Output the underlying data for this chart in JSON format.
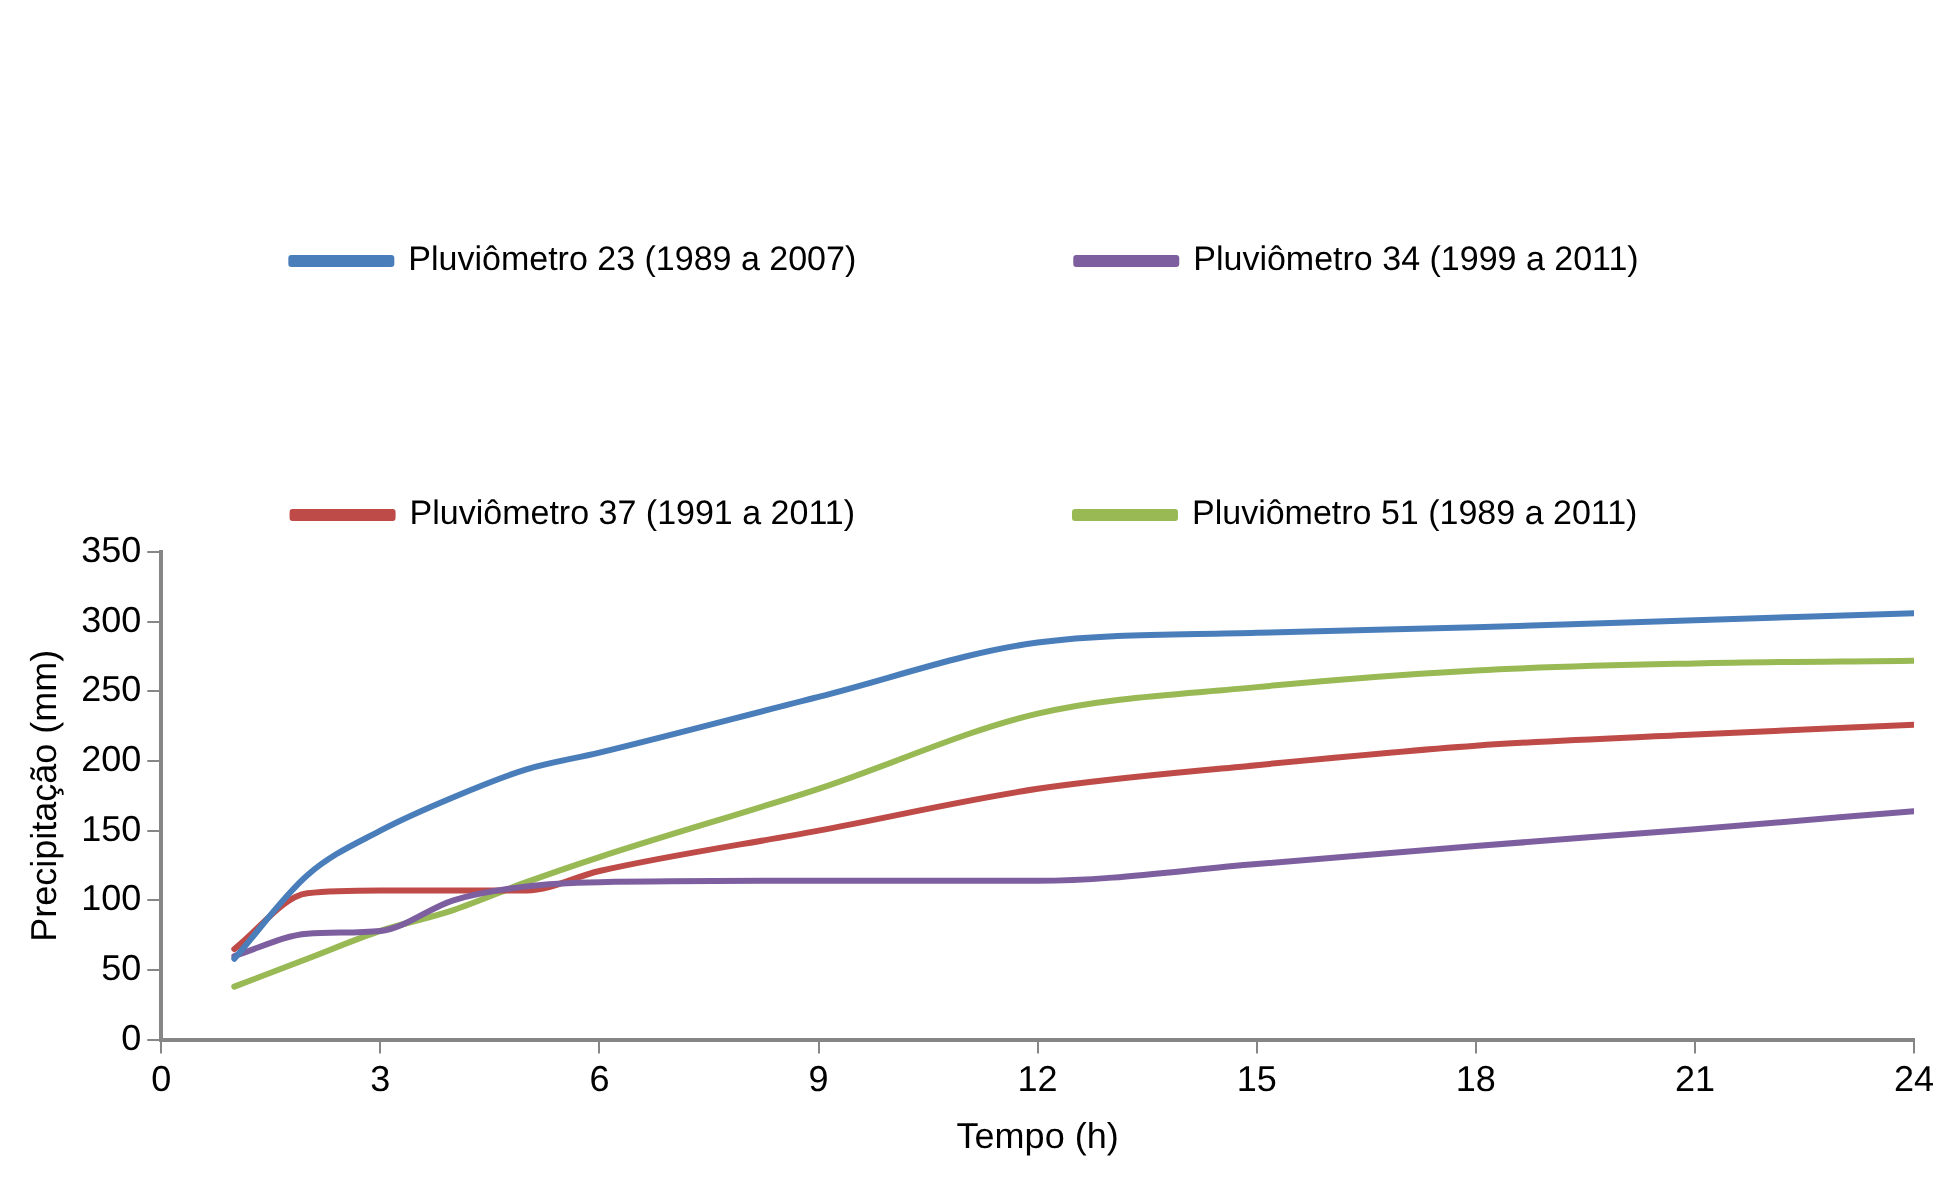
{
  "chart_data": {
    "type": "line",
    "xlabel": "Tempo (h)",
    "ylabel": "Precipitação (mm)",
    "x": [
      1,
      2,
      3,
      4,
      5,
      6,
      9,
      12,
      15,
      18,
      21,
      24
    ],
    "series": [
      {
        "name": "Pluviômetro 23 (1989 a 2007)",
        "color": "#4a7ebb",
        "values": [
          58,
          118,
          150,
          174,
          194,
          206,
          246,
          285,
          292,
          296,
          301,
          306
        ]
      },
      {
        "name": "Pluviômetro 34 (1999 a 2011)",
        "color": "#7d5fa0",
        "values": [
          60,
          76,
          78,
          100,
          110,
          113,
          114,
          114,
          126,
          139,
          151,
          164
        ]
      },
      {
        "name": "Pluviômetro 37 (1991 a 2011)",
        "color": "#be4b48",
        "values": [
          65,
          105,
          107,
          107,
          107,
          121,
          150,
          180,
          197,
          211,
          219,
          226
        ]
      },
      {
        "name": "Pluviômetro 51 (1989 a 2011)",
        "color": "#98b954",
        "values": [
          38,
          58,
          78,
          93,
          113,
          131,
          180,
          234,
          253,
          265,
          270,
          272
        ]
      }
    ],
    "xlim": [
      0,
      24
    ],
    "xticks": [
      0,
      3,
      6,
      9,
      12,
      15,
      18,
      21,
      24
    ],
    "ylim": [
      0,
      350
    ],
    "yticks": [
      0,
      50,
      100,
      150,
      200,
      250,
      300,
      350
    ],
    "grid": false,
    "legend": "top",
    "marker": "none",
    "line_style": "solid"
  }
}
